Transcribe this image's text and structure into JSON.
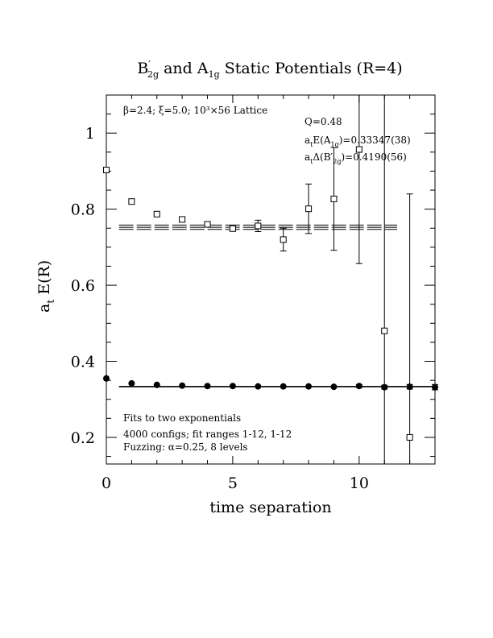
{
  "chart_data": {
    "type": "scatter",
    "title": "B′₂g and A₁g Static Potentials (R=4)",
    "title_parts": {
      "b_main": "B",
      "b_prime": "′",
      "b_sub": "2g",
      "middle": " and ",
      "a_main": "A",
      "a_sub": "1g",
      "tail": " Static Potentials (R=4)"
    },
    "xlabel": "time separation",
    "ylabel": "a",
    "ylabel_sub": "t",
    "ylabel_tail": " E(R)",
    "xlim": [
      0,
      13
    ],
    "ylim": [
      0.13,
      1.1
    ],
    "x_ticks": [
      0,
      5,
      10
    ],
    "x_tick_labels": [
      "0",
      "5",
      "10"
    ],
    "y_ticks": [
      0.2,
      0.4,
      0.6,
      0.8,
      1.0
    ],
    "y_tick_labels": [
      "0.2",
      "0.4",
      "0.6",
      "0.8",
      "1"
    ],
    "annotations": {
      "lattice": "β=2.4; ξ=5.0; 10³×56 Lattice",
      "q": "Q=0.48",
      "energy_a": "a",
      "energy_a_sub": "t",
      "energy_mid": "E(A",
      "energy_mid_sub": "1g",
      "energy_val": ")=0.33347(38)",
      "delta_a": "a",
      "delta_a_sub": "t",
      "delta_mid": "Δ(B′",
      "delta_mid_sub": "2g",
      "delta_val": ")=0.4190(56)",
      "fits_line1": "Fits to two exponentials",
      "fits_line2": "4000 configs; fit ranges 1-12, 1-12",
      "fits_line3": "Fuzzing: α=0.25, 8 levels"
    },
    "series": [
      {
        "name": "A1g",
        "marker": "filled-circle",
        "x": [
          0,
          1,
          2,
          3,
          4,
          5,
          6,
          7,
          8,
          9,
          10,
          11,
          12,
          13
        ],
        "y": [
          0.355,
          0.342,
          0.338,
          0.336,
          0.335,
          0.335,
          0.334,
          0.334,
          0.334,
          0.333,
          0.335,
          0.332,
          0.333,
          0.332
        ],
        "err": [
          0.002,
          0.002,
          0.002,
          0.002,
          0.002,
          0.002,
          0.002,
          0.002,
          0.002,
          0.003,
          0.004,
          0.005,
          0.006,
          0.007
        ]
      },
      {
        "name": "B'2g",
        "marker": "open-square",
        "x": [
          0,
          1,
          2,
          3,
          4,
          5,
          6,
          7,
          8,
          9,
          10,
          11,
          12
        ],
        "y": [
          0.903,
          0.82,
          0.787,
          0.773,
          0.76,
          0.749,
          0.756,
          0.72,
          0.801,
          0.827,
          0.957,
          0.48,
          0.2
        ],
        "err": [
          0.002,
          0.003,
          0.004,
          0.005,
          0.006,
          0.007,
          0.015,
          0.03,
          0.065,
          0.135,
          0.3,
          0.65,
          0.64
        ]
      }
    ],
    "fits": [
      {
        "name": "A1g fit",
        "x_range": [
          0.5,
          12.9
        ],
        "value": 0.33347,
        "error": 0.00038
      },
      {
        "name": "B'2g fit",
        "x_range": [
          0.5,
          11.5
        ],
        "value": 0.7525,
        "error": 0.0056
      }
    ]
  }
}
